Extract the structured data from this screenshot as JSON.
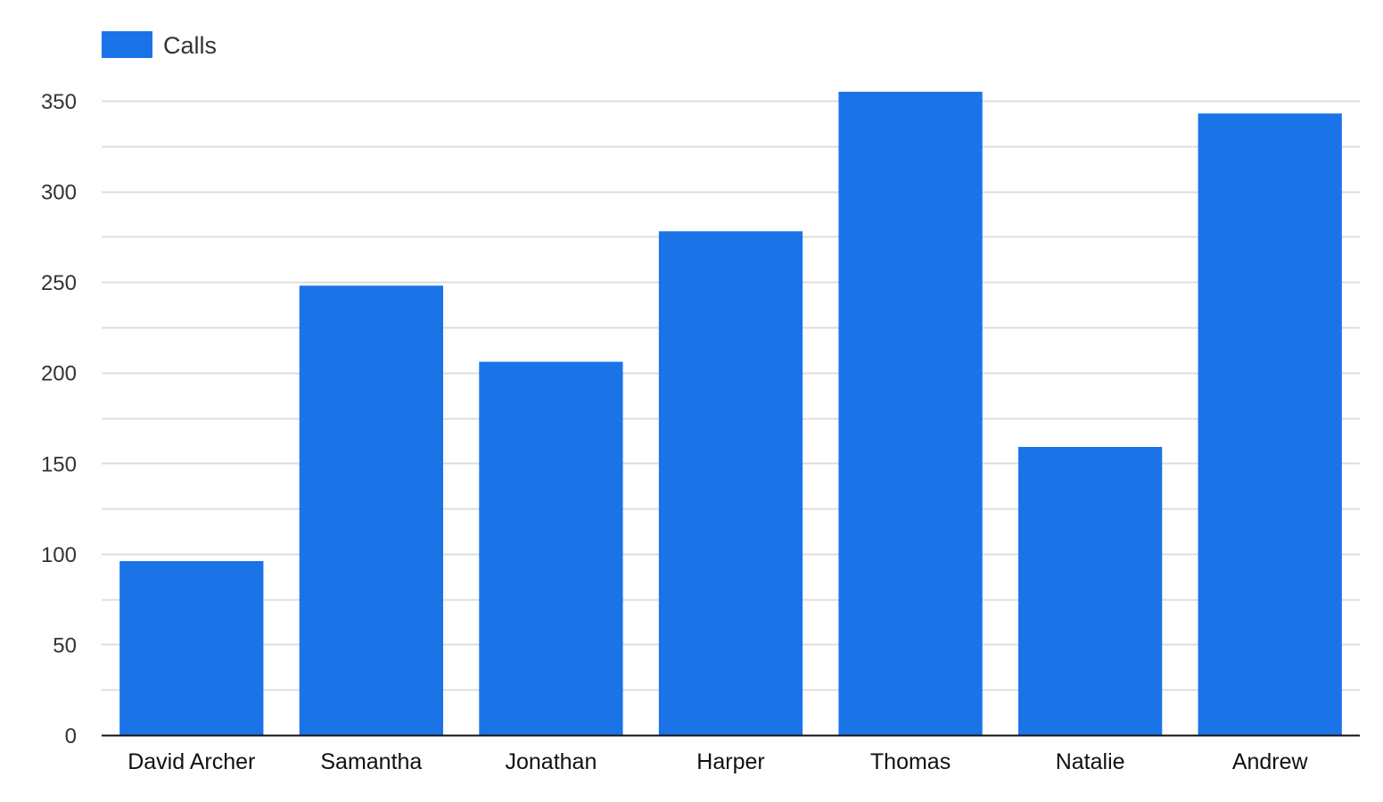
{
  "chart_data": {
    "type": "bar",
    "categories": [
      "David Archer",
      "Samantha",
      "Jonathan",
      "Harper",
      "Thomas",
      "Natalie",
      "Andrew"
    ],
    "series": [
      {
        "name": "Calls",
        "values": [
          96,
          248,
          206,
          278,
          355,
          159,
          343
        ]
      }
    ],
    "title": "",
    "xlabel": "",
    "ylabel": "",
    "ylim": [
      0,
      350
    ],
    "yticks": [
      "0",
      "50",
      "100",
      "150",
      "200",
      "250",
      "300",
      "350"
    ],
    "minor_gridlines": true,
    "grid": true,
    "legend_position": "top-left",
    "colors": {
      "bar": "#1b73e8",
      "grid": "#dddddd",
      "axis": "#111111"
    }
  }
}
